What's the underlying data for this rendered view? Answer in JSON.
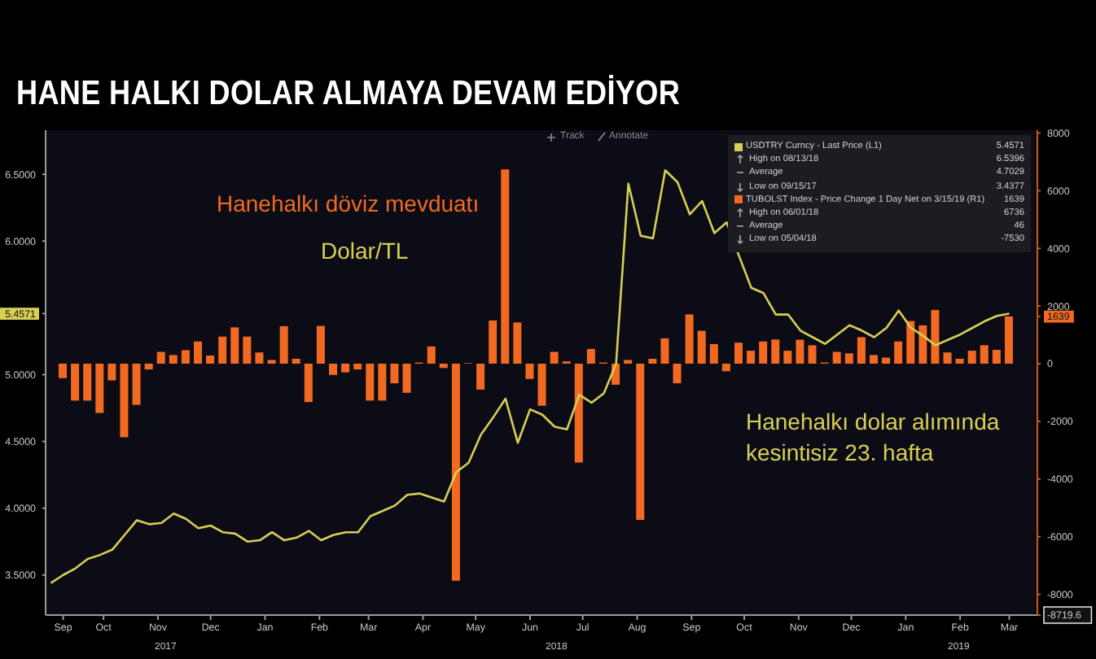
{
  "chart_data": {
    "type": "line",
    "title": "HANE HALKI DOLAR ALMAYA DEVAM EDİYOR",
    "xlim": [
      "2017-09-12",
      "2019-03-31"
    ],
    "xticks": [
      {
        "value": "2017-09-22",
        "label": "Sep"
      },
      {
        "value": "2017-10-15",
        "label": "Oct"
      },
      {
        "value": "2017-11-15",
        "label": "Nov"
      },
      {
        "value": "2017-12-15",
        "label": "Dec"
      },
      {
        "value": "2018-01-15",
        "label": "Jan"
      },
      {
        "value": "2018-02-15",
        "label": "Feb"
      },
      {
        "value": "2018-03-15",
        "label": "Mar"
      },
      {
        "value": "2018-04-15",
        "label": "Apr"
      },
      {
        "value": "2018-05-15",
        "label": "May"
      },
      {
        "value": "2018-06-15",
        "label": "Jun"
      },
      {
        "value": "2018-07-15",
        "label": "Jul"
      },
      {
        "value": "2018-08-15",
        "label": "Aug"
      },
      {
        "value": "2018-09-15",
        "label": "Sep"
      },
      {
        "value": "2018-10-15",
        "label": "Oct"
      },
      {
        "value": "2018-11-15",
        "label": "Nov"
      },
      {
        "value": "2018-12-15",
        "label": "Dec"
      },
      {
        "value": "2019-01-15",
        "label": "Jan"
      },
      {
        "value": "2019-02-15",
        "label": "Feb"
      },
      {
        "value": "2019-03-15",
        "label": "Mar"
      }
    ],
    "ylim": [
      3.2,
      6.83
    ],
    "yticks": [
      {
        "value": 3.5,
        "label": "3.5000"
      },
      {
        "value": 4,
        "label": "4.0000"
      },
      {
        "value": 4.5,
        "label": "4.5000"
      },
      {
        "value": 5,
        "label": "5.0000"
      },
      {
        "value": 5.4571,
        "label": "5.4571"
      },
      {
        "value": 6,
        "label": "6.0000"
      },
      {
        "value": 6.5,
        "label": "6.5000"
      }
    ],
    "y2lim": [
      -8719.6,
      8100
    ],
    "y2ticks": [
      {
        "value": -8719.6,
        "label": "-8719.6"
      },
      -8000,
      -6000,
      -4000,
      -2000,
      0,
      1639,
      2000,
      4000,
      6000,
      8000
    ],
    "legend": "top right",
    "series": [
      {
        "name": "USDTRY Curncy - Last Price (L1)",
        "color": "#d8cf55",
        "x": [
          "2017-09-15",
          "2017-09-22",
          "2017-09-29",
          "2017-10-06",
          "2017-10-13",
          "2017-10-20",
          "2017-10-27",
          "2017-11-03",
          "2017-11-10",
          "2017-11-17",
          "2017-11-24",
          "2017-12-01",
          "2017-12-08",
          "2017-12-15",
          "2017-12-22",
          "2017-12-29",
          "2018-01-05",
          "2018-01-12",
          "2018-01-19",
          "2018-01-26",
          "2018-02-02",
          "2018-02-09",
          "2018-02-16",
          "2018-02-23",
          "2018-03-02",
          "2018-03-09",
          "2018-03-16",
          "2018-03-23",
          "2018-03-30",
          "2018-04-06",
          "2018-04-13",
          "2018-04-20",
          "2018-04-27",
          "2018-05-04",
          "2018-05-11",
          "2018-05-18",
          "2018-05-25",
          "2018-06-01",
          "2018-06-08",
          "2018-06-15",
          "2018-06-22",
          "2018-06-29",
          "2018-07-06",
          "2018-07-13",
          "2018-07-20",
          "2018-07-27",
          "2018-08-03",
          "2018-08-10",
          "2018-08-17",
          "2018-08-24",
          "2018-08-31",
          "2018-09-07",
          "2018-09-14",
          "2018-09-21",
          "2018-09-28",
          "2018-10-05",
          "2018-10-12",
          "2018-10-19",
          "2018-10-26",
          "2018-11-02",
          "2018-11-09",
          "2018-11-16",
          "2018-11-23",
          "2018-11-30",
          "2018-12-07",
          "2018-12-14",
          "2018-12-21",
          "2018-12-28",
          "2019-01-04",
          "2019-01-11",
          "2019-01-18",
          "2019-01-25",
          "2019-02-01",
          "2019-02-08",
          "2019-02-15",
          "2019-02-22",
          "2019-03-01",
          "2019-03-08",
          "2019-03-15"
        ],
        "values": [
          3.44,
          3.5,
          3.55,
          3.62,
          3.65,
          3.69,
          3.8,
          3.91,
          3.88,
          3.89,
          3.96,
          3.92,
          3.85,
          3.87,
          3.82,
          3.81,
          3.75,
          3.76,
          3.82,
          3.76,
          3.78,
          3.83,
          3.76,
          3.8,
          3.82,
          3.82,
          3.94,
          3.98,
          4.02,
          4.1,
          4.11,
          4.08,
          4.05,
          4.27,
          4.34,
          4.55,
          4.68,
          4.82,
          4.49,
          4.74,
          4.7,
          4.61,
          4.59,
          4.85,
          4.79,
          4.86,
          5.08,
          6.43,
          6.04,
          6.02,
          6.53,
          6.44,
          6.2,
          6.3,
          6.06,
          6.14,
          5.89,
          5.65,
          5.61,
          5.45,
          5.45,
          5.33,
          5.28,
          5.23,
          5.3,
          5.37,
          5.33,
          5.28,
          5.35,
          5.48,
          5.35,
          5.29,
          5.22,
          5.26,
          5.3,
          5.35,
          5.4,
          5.44,
          5.4571
        ]
      },
      {
        "name": "TUBOLST Index - Price Change 1 Day Net on 3/15/19 (R1)",
        "type": "bar",
        "axis": "y2",
        "color": "#f26a21",
        "x": [
          "2017-09-22",
          "2017-09-29",
          "2017-10-06",
          "2017-10-13",
          "2017-10-20",
          "2017-10-27",
          "2017-11-03",
          "2017-11-10",
          "2017-11-17",
          "2017-11-24",
          "2017-12-01",
          "2017-12-08",
          "2017-12-15",
          "2017-12-22",
          "2017-12-29",
          "2018-01-05",
          "2018-01-12",
          "2018-01-19",
          "2018-01-26",
          "2018-02-02",
          "2018-02-09",
          "2018-02-16",
          "2018-02-23",
          "2018-03-02",
          "2018-03-09",
          "2018-03-16",
          "2018-03-23",
          "2018-03-30",
          "2018-04-06",
          "2018-04-13",
          "2018-04-20",
          "2018-04-27",
          "2018-05-04",
          "2018-05-11",
          "2018-05-18",
          "2018-05-25",
          "2018-06-01",
          "2018-06-08",
          "2018-06-15",
          "2018-06-22",
          "2018-06-29",
          "2018-07-06",
          "2018-07-13",
          "2018-07-20",
          "2018-07-27",
          "2018-08-03",
          "2018-08-10",
          "2018-08-17",
          "2018-08-24",
          "2018-08-31",
          "2018-09-07",
          "2018-09-14",
          "2018-09-21",
          "2018-09-28",
          "2018-10-05",
          "2018-10-12",
          "2018-10-19",
          "2018-10-26",
          "2018-11-02",
          "2018-11-09",
          "2018-11-16",
          "2018-11-23",
          "2018-11-30",
          "2018-12-07",
          "2018-12-14",
          "2018-12-21",
          "2018-12-28",
          "2019-01-04",
          "2019-01-11",
          "2019-01-18",
          "2019-01-25",
          "2019-02-01",
          "2019-02-08",
          "2019-02-15",
          "2019-02-22",
          "2019-03-01",
          "2019-03-08",
          "2019-03-15"
        ],
        "values": [
          -500,
          -1280,
          -1280,
          -1710,
          -580,
          -2550,
          -1430,
          -200,
          410,
          300,
          470,
          770,
          280,
          940,
          1260,
          940,
          390,
          130,
          1300,
          170,
          -1330,
          1310,
          -390,
          -300,
          -200,
          -1280,
          -1280,
          -680,
          -1010,
          40,
          600,
          -150,
          -7530,
          20,
          -900,
          1500,
          6736,
          1430,
          -530,
          -1460,
          410,
          80,
          -3430,
          510,
          40,
          -730,
          130,
          -5420,
          170,
          880,
          -680,
          1710,
          1140,
          680,
          -260,
          730,
          450,
          770,
          840,
          450,
          830,
          640,
          40,
          410,
          360,
          920,
          300,
          210,
          770,
          1480,
          1330,
          1860,
          390,
          170,
          450,
          640,
          480,
          1639
        ]
      }
    ],
    "annotations": [
      "Hanehalkı döviz mevduatı",
      "Dolar/TL",
      "Hanehalkı dolar alımında kesintisiz 23. hafta",
      "Track",
      "Annotate",
      "2017",
      "2018",
      "2019",
      "5.4571",
      "High on 08/13/18",
      "6.5396",
      "Average",
      "4.7029",
      "Low on 09/15/17",
      "3.4377",
      "1639",
      "High on 06/01/18",
      "6736",
      "Average",
      "46",
      "Low on 05/04/18",
      "-7530"
    ]
  }
}
